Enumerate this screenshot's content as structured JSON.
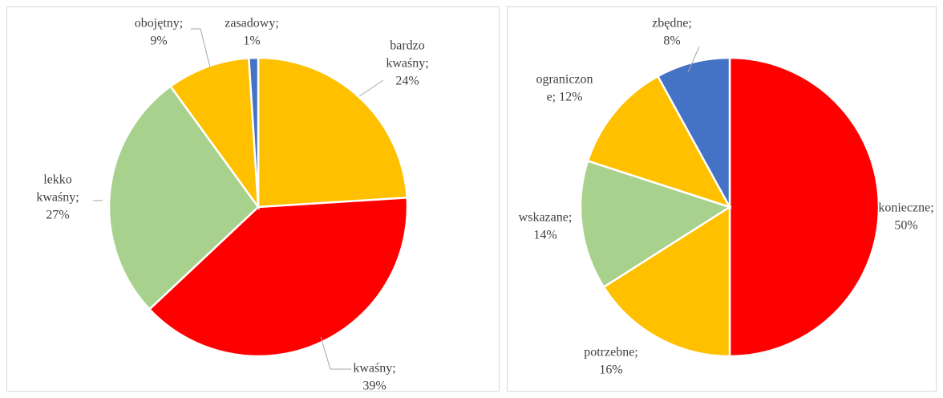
{
  "chart_data": [
    {
      "type": "pie",
      "values": [
        24,
        39,
        27,
        9,
        1
      ],
      "value_labels": [
        [
          "bardzo",
          "kwaśny;",
          "24%"
        ],
        [
          "kwaśny;",
          "39%"
        ],
        [
          "lekko",
          "kwaśny;",
          "27%"
        ],
        [
          "obojętny;",
          "9%"
        ],
        [
          "zasadowy;",
          "1%"
        ]
      ],
      "colors": [
        "#FFC000",
        "#FF0000",
        "#A9D18E",
        "#FFC000",
        "#4472C4"
      ]
    },
    {
      "type": "pie",
      "values": [
        50,
        16,
        14,
        12,
        8
      ],
      "value_labels": [
        [
          "konieczne;",
          "50%"
        ],
        [
          "potrzebne;",
          "16%"
        ],
        [
          "wskazane;",
          "14%"
        ],
        [
          "ograniczon",
          "e; 12%"
        ],
        [
          "zbędne;",
          "8%"
        ]
      ],
      "colors": [
        "#FF0000",
        "#FFC000",
        "#A9D18E",
        "#FFC000",
        "#4472C4"
      ]
    }
  ]
}
